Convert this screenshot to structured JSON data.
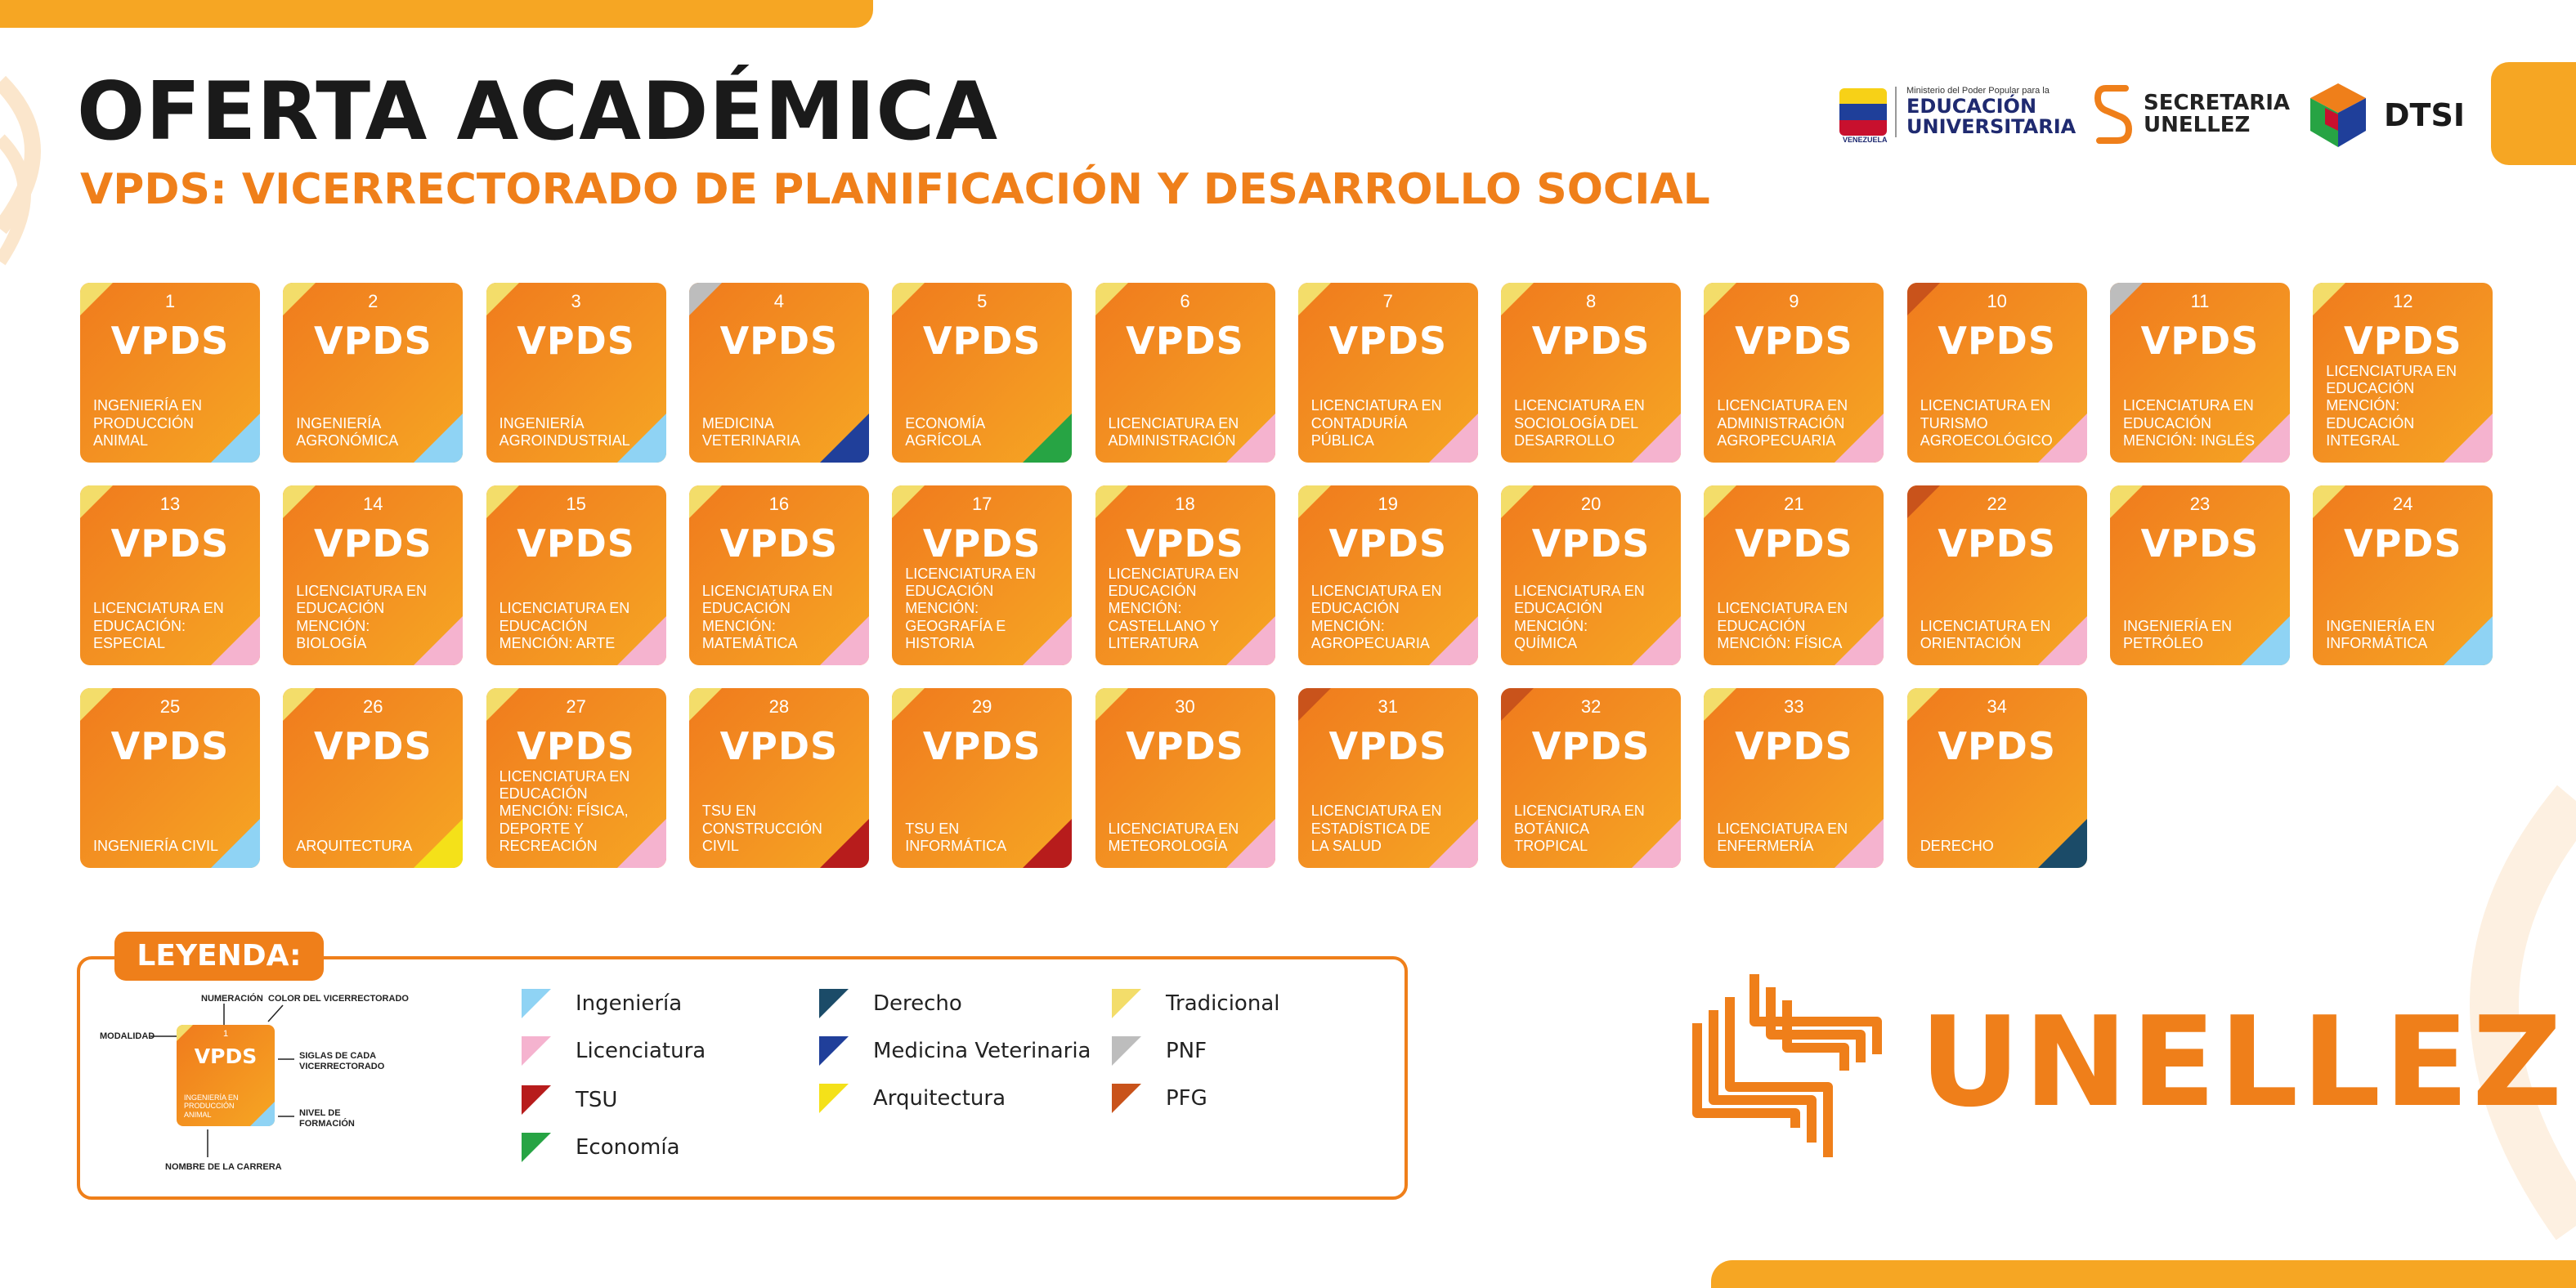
{
  "header": {
    "title": "OFERTA ACADÉMICA",
    "subtitle": "VPDS: VICERRECTORADO DE PLANIFICACIÓN Y DESARROLLO SOCIAL"
  },
  "logos": {
    "ministry_small": "Ministerio del Poder Popular para la",
    "ministry_main_1": "EDUCACIÓN",
    "ministry_main_2": "UNIVERSITARIA",
    "ministry_country": "VENEZUELA",
    "secretaria_1": "SECRETARIA",
    "secretaria_2": "UNELLEZ",
    "dtsi": "DTSI"
  },
  "card_brand": "VPDS",
  "colors": {
    "orange": "#ef7f1a",
    "tradicional": "#f3dd6a",
    "pnf": "#bdbdbd",
    "pfg": "#c9531b",
    "ingenieria": "#8fd3f4",
    "licenciatura": "#f5b3cf",
    "tsu": "#b71c1c",
    "economia": "#27a444",
    "derecho": "#1b4b68",
    "medicina": "#203f9a",
    "arquitectura": "#f4e119"
  },
  "cards": [
    {
      "n": "1",
      "name": "INGENIERÍA EN PRODUCCIÓN ANIMAL",
      "mod": "tradicional",
      "lvl": "ingenieria"
    },
    {
      "n": "2",
      "name": "INGENIERÍA AGRONÓMICA",
      "mod": "tradicional",
      "lvl": "ingenieria"
    },
    {
      "n": "3",
      "name": "INGENIERÍA AGROINDUSTRIAL",
      "mod": "tradicional",
      "lvl": "ingenieria"
    },
    {
      "n": "4",
      "name": "MEDICINA VETERINARIA",
      "mod": "pnf",
      "lvl": "medicina"
    },
    {
      "n": "5",
      "name": "ECONOMÍA AGRÍCOLA",
      "mod": "tradicional",
      "lvl": "economia"
    },
    {
      "n": "6",
      "name": "LICENCIATURA EN ADMINISTRACIÓN",
      "mod": "tradicional",
      "lvl": "licenciatura"
    },
    {
      "n": "7",
      "name": "LICENCIATURA EN CONTADURÍA PÚBLICA",
      "mod": "tradicional",
      "lvl": "licenciatura"
    },
    {
      "n": "8",
      "name": "LICENCIATURA EN SOCIOLOGÍA DEL DESARROLLO",
      "mod": "tradicional",
      "lvl": "licenciatura"
    },
    {
      "n": "9",
      "name": "LICENCIATURA EN ADMINISTRACIÓN AGROPECUARIA",
      "mod": "tradicional",
      "lvl": "licenciatura"
    },
    {
      "n": "10",
      "name": "LICENCIATURA EN TURISMO AGROECOLÓGICO",
      "mod": "pfg",
      "lvl": "licenciatura"
    },
    {
      "n": "11",
      "name": "LICENCIATURA EN EDUCACIÓN MENCIÓN: INGLÉS",
      "mod": "pnf",
      "lvl": "licenciatura"
    },
    {
      "n": "12",
      "name": "LICENCIATURA EN EDUCACIÓN MENCIÓN: EDUCACIÓN INTEGRAL",
      "mod": "tradicional",
      "lvl": "licenciatura"
    },
    {
      "n": "13",
      "name": "LICENCIATURA EN EDUCACIÓN: ESPECIAL",
      "mod": "tradicional",
      "lvl": "licenciatura"
    },
    {
      "n": "14",
      "name": "LICENCIATURA EN EDUCACIÓN MENCIÓN: BIOLOGÍA",
      "mod": "tradicional",
      "lvl": "licenciatura"
    },
    {
      "n": "15",
      "name": "LICENCIATURA EN EDUCACIÓN MENCIÓN: ARTE",
      "mod": "tradicional",
      "lvl": "licenciatura"
    },
    {
      "n": "16",
      "name": "LICENCIATURA EN EDUCACIÓN MENCIÓN: MATEMÁTICA",
      "mod": "tradicional",
      "lvl": "licenciatura"
    },
    {
      "n": "17",
      "name": "LICENCIATURA EN EDUCACIÓN MENCIÓN: GEOGRAFÍA E HISTORIA",
      "mod": "tradicional",
      "lvl": "licenciatura"
    },
    {
      "n": "18",
      "name": "LICENCIATURA EN EDUCACIÓN MENCIÓN: CASTELLANO Y LITERATURA",
      "mod": "tradicional",
      "lvl": "licenciatura"
    },
    {
      "n": "19",
      "name": "LICENCIATURA EN EDUCACIÓN MENCIÓN: AGROPECUARIA",
      "mod": "tradicional",
      "lvl": "licenciatura"
    },
    {
      "n": "20",
      "name": "LICENCIATURA EN EDUCACIÓN MENCIÓN: QUÍMICA",
      "mod": "tradicional",
      "lvl": "licenciatura"
    },
    {
      "n": "21",
      "name": "LICENCIATURA EN EDUCACIÓN MENCIÓN: FÍSICA",
      "mod": "tradicional",
      "lvl": "licenciatura"
    },
    {
      "n": "22",
      "name": "LICENCIATURA EN ORIENTACIÓN",
      "mod": "pfg",
      "lvl": "licenciatura"
    },
    {
      "n": "23",
      "name": "INGENIERÍA EN PETRÓLEO",
      "mod": "tradicional",
      "lvl": "ingenieria"
    },
    {
      "n": "24",
      "name": "INGENIERÍA EN INFORMÁTICA",
      "mod": "tradicional",
      "lvl": "ingenieria"
    },
    {
      "n": "25",
      "name": "INGENIERÍA CIVIL",
      "mod": "tradicional",
      "lvl": "ingenieria"
    },
    {
      "n": "26",
      "name": "ARQUITECTURA",
      "mod": "tradicional",
      "lvl": "arquitectura"
    },
    {
      "n": "27",
      "name": "LICENCIATURA EN EDUCACIÓN MENCIÓN: FÍSICA, DEPORTE Y RECREACIÓN",
      "mod": "tradicional",
      "lvl": "licenciatura"
    },
    {
      "n": "28",
      "name": "TSU EN CONSTRUCCIÓN CIVIL",
      "mod": "tradicional",
      "lvl": "tsu"
    },
    {
      "n": "29",
      "name": "TSU EN INFORMÁTICA",
      "mod": "tradicional",
      "lvl": "tsu"
    },
    {
      "n": "30",
      "name": "LICENCIATURA EN METEOROLOGÍA",
      "mod": "tradicional",
      "lvl": "licenciatura"
    },
    {
      "n": "31",
      "name": "LICENCIATURA EN ESTADÍSTICA DE LA SALUD",
      "mod": "pfg",
      "lvl": "licenciatura"
    },
    {
      "n": "32",
      "name": "LICENCIATURA EN BOTÁNICA TROPICAL",
      "mod": "pfg",
      "lvl": "licenciatura"
    },
    {
      "n": "33",
      "name": "LICENCIATURA EN ENFERMERÍA",
      "mod": "tradicional",
      "lvl": "licenciatura"
    },
    {
      "n": "34",
      "name": "DERECHO",
      "mod": "tradicional",
      "lvl": "derecho"
    }
  ],
  "legend": {
    "title": "LEYENDA:",
    "items": [
      {
        "label": "Ingeniería",
        "color": "#8fd3f4"
      },
      {
        "label": "Licenciatura",
        "color": "#f5b3cf"
      },
      {
        "label": "TSU",
        "color": "#b71c1c"
      },
      {
        "label": "Economía",
        "color": "#27a444"
      },
      {
        "label": "Derecho",
        "color": "#1b4b68"
      },
      {
        "label": "Medicina Veterinaria",
        "color": "#203f9a"
      },
      {
        "label": "Arquitectura",
        "color": "#f4e119"
      },
      {
        "label": "Tradicional",
        "color": "#f3dd6a"
      },
      {
        "label": "PNF",
        "color": "#bdbdbd"
      },
      {
        "label": "PFG",
        "color": "#c9531b"
      }
    ],
    "example": {
      "num": "1",
      "brand": "VPDS",
      "name": "INGENIERÍA EN PRODUCCIÓN ANIMAL",
      "ann_numeracion": "NUMERACIÓN",
      "ann_color": "COLOR DEL VICERRECTORADO",
      "ann_modalidad": "MODALIDAD",
      "ann_siglas": "SIGLAS DE CADA VICERRECTORADO",
      "ann_nivel": "NIVEL DE FORMACIÓN",
      "ann_nombre": "NOMBRE DE LA CARRERA"
    }
  },
  "footer_brand": "UNELLEZ"
}
